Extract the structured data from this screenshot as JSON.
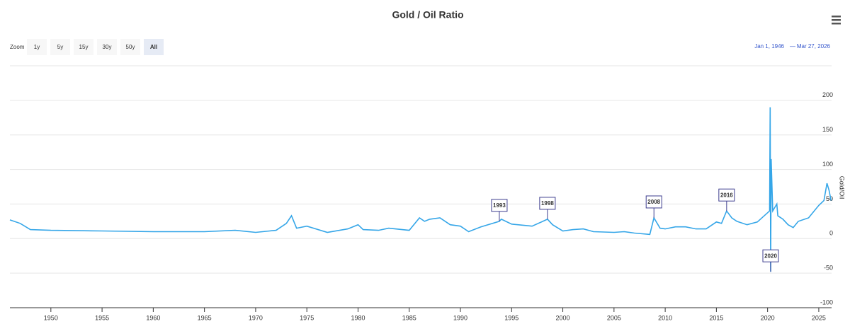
{
  "range_selector": {
    "zoom_label": "Zoom",
    "buttons": [
      "1y",
      "5y",
      "15y",
      "30y",
      "50y",
      "All"
    ],
    "selected": "All",
    "from": "Jan 1, 1946",
    "separator": "—",
    "to": "Mar 27, 2026"
  },
  "chart_data": {
    "type": "line",
    "title": "Gold / Oil Ratio",
    "y_label": "Gold/Oil",
    "x": [
      1946,
      1947,
      1948,
      1950,
      1955,
      1960,
      1965,
      1968,
      1970,
      1972,
      1973,
      1973.5,
      1974,
      1975,
      1977,
      1979,
      1980,
      1980.5,
      1982,
      1983,
      1985,
      1986,
      1986.5,
      1987,
      1988,
      1989,
      1990,
      1990.8,
      1992,
      1993.8,
      1994,
      1995,
      1997,
      1998.5,
      1999,
      2000,
      2001,
      2002,
      2003,
      2005,
      2006,
      2007,
      2008.5,
      2008.9,
      2009.5,
      2010,
      2011,
      2012,
      2013,
      2014,
      2015,
      2015.5,
      2016,
      2016.5,
      2017,
      2018,
      2019,
      2020.2,
      2020.25,
      2020.3,
      2020.35,
      2020.5,
      2020.9,
      2021,
      2021.5,
      2022,
      2022.5,
      2023,
      2024,
      2025,
      2025.5,
      2025.8,
      2026,
      2026.2
    ],
    "series": [
      {
        "color": "#35a6e8",
        "values": [
          27,
          22,
          13,
          12,
          11,
          10,
          10,
          12,
          9,
          12,
          22,
          33,
          15,
          18,
          9,
          14,
          20,
          13,
          12,
          15,
          12,
          30,
          25,
          28,
          30,
          20,
          18,
          10,
          17,
          25,
          28,
          21,
          18,
          28,
          20,
          11,
          13,
          14,
          10,
          9,
          10,
          8,
          6,
          30,
          15,
          14,
          17,
          17,
          14,
          14,
          24,
          22,
          40,
          30,
          25,
          20,
          24,
          40,
          190,
          -48,
          115,
          40,
          50,
          33,
          28,
          20,
          16,
          25,
          30,
          48,
          55,
          80,
          70,
          55
        ]
      }
    ],
    "annotations": [
      {
        "label": "1993",
        "x": 1993.8,
        "y": 25
      },
      {
        "label": "1998",
        "x": 1998.5,
        "y": 28
      },
      {
        "label": "2008",
        "x": 2008.9,
        "y": 30
      },
      {
        "label": "2016",
        "x": 2016,
        "y": 40
      },
      {
        "label": "2020",
        "x": 2020.3,
        "y": -48
      }
    ],
    "xlim": [
      1946,
      2026.25
    ],
    "xticks": [
      1950,
      1955,
      1960,
      1965,
      1970,
      1975,
      1980,
      1985,
      1990,
      1995,
      2000,
      2005,
      2010,
      2015,
      2020,
      2025
    ],
    "ylim": [
      -100,
      250
    ],
    "yticks": [
      -100,
      -50,
      0,
      50,
      100,
      150,
      200
    ],
    "grid": true
  }
}
